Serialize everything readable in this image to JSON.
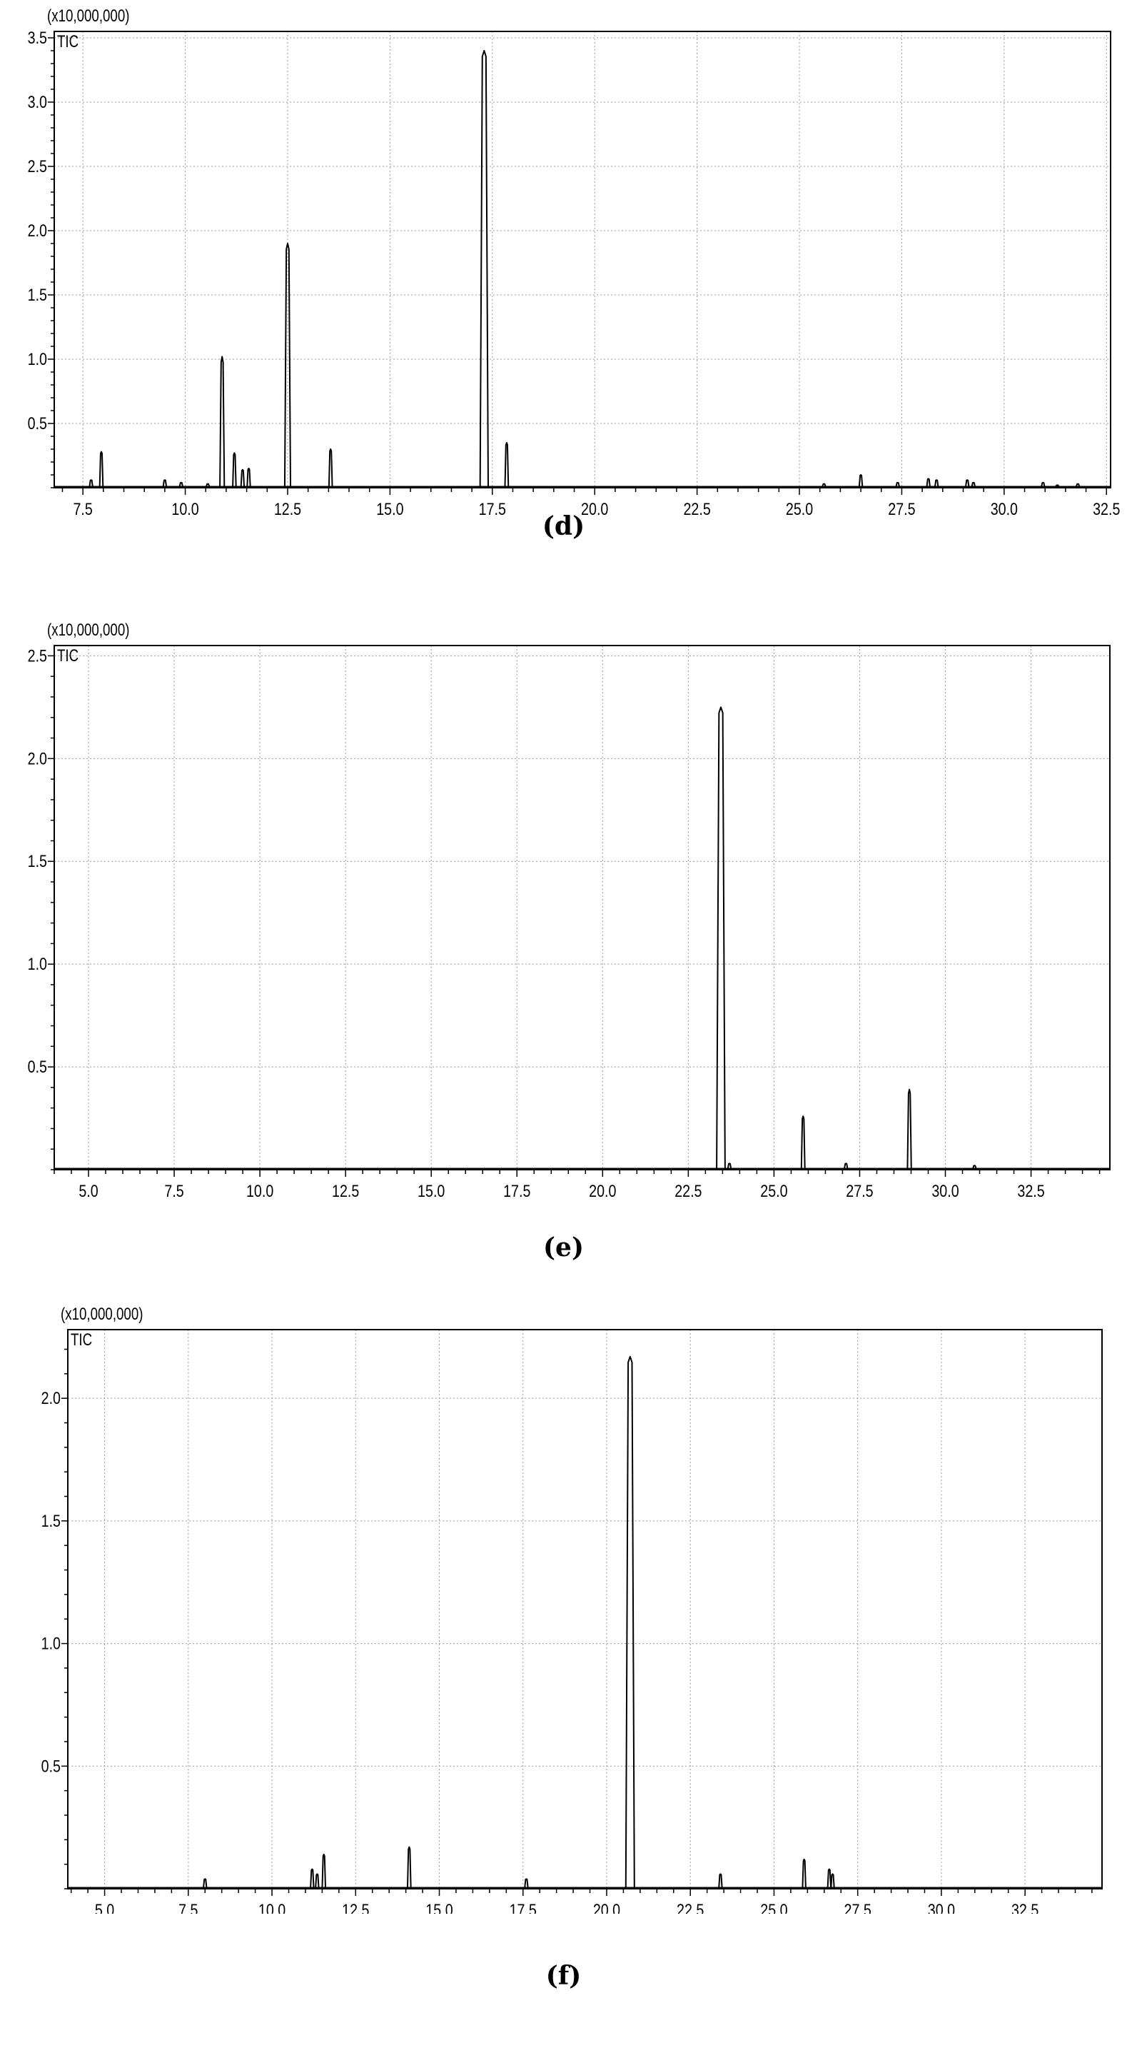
{
  "chart_data": [
    {
      "type": "line",
      "panel_label": "(d)",
      "scale_label": "(x10,000,000)",
      "series_label": "TIC",
      "xlim": [
        6.8,
        32.6
      ],
      "ylim": [
        0,
        3.55
      ],
      "x_ticks": [
        7.5,
        10.0,
        12.5,
        15.0,
        17.5,
        20.0,
        22.5,
        25.0,
        27.5,
        30.0,
        32.5
      ],
      "x_tick_labels": [
        "7.5",
        "10.0",
        "12.5",
        "15.0",
        "17.5",
        "20.0",
        "22.5",
        "25.0",
        "27.5",
        "30.0",
        "32.5"
      ],
      "y_ticks": [
        0.5,
        1.0,
        1.5,
        2.0,
        2.5,
        3.0,
        3.5
      ],
      "y_tick_labels": [
        "0.5",
        "1.0",
        "1.5",
        "2.0",
        "2.5",
        "3.0",
        "3.5"
      ],
      "grid": true,
      "peaks": [
        {
          "x": 7.7,
          "y": 0.06
        },
        {
          "x": 7.95,
          "y": 0.28
        },
        {
          "x": 9.5,
          "y": 0.06
        },
        {
          "x": 9.9,
          "y": 0.04
        },
        {
          "x": 10.55,
          "y": 0.03
        },
        {
          "x": 10.9,
          "y": 1.02
        },
        {
          "x": 11.2,
          "y": 0.27
        },
        {
          "x": 11.4,
          "y": 0.14
        },
        {
          "x": 11.55,
          "y": 0.15
        },
        {
          "x": 12.5,
          "y": 1.9
        },
        {
          "x": 13.55,
          "y": 0.3
        },
        {
          "x": 17.3,
          "y": 3.4
        },
        {
          "x": 17.85,
          "y": 0.35
        },
        {
          "x": 25.6,
          "y": 0.03
        },
        {
          "x": 26.5,
          "y": 0.1
        },
        {
          "x": 27.4,
          "y": 0.04
        },
        {
          "x": 28.15,
          "y": 0.07
        },
        {
          "x": 28.35,
          "y": 0.06
        },
        {
          "x": 29.1,
          "y": 0.06
        },
        {
          "x": 29.25,
          "y": 0.04
        },
        {
          "x": 30.95,
          "y": 0.04
        },
        {
          "x": 31.3,
          "y": 0.02
        },
        {
          "x": 31.8,
          "y": 0.03
        }
      ]
    },
    {
      "type": "line",
      "panel_label": "(e)",
      "scale_label": "(x10,000,000)",
      "series_label": "TIC",
      "xlim": [
        4.0,
        34.8
      ],
      "ylim": [
        0,
        2.55
      ],
      "x_ticks": [
        5.0,
        7.5,
        10.0,
        12.5,
        15.0,
        17.5,
        20.0,
        22.5,
        25.0,
        27.5,
        30.0,
        32.5
      ],
      "x_tick_labels": [
        "5.0",
        "7.5",
        "10.0",
        "12.5",
        "15.0",
        "17.5",
        "20.0",
        "22.5",
        "25.0",
        "27.5",
        "30.0",
        "32.5"
      ],
      "y_ticks": [
        0.5,
        1.0,
        1.5,
        2.0,
        2.5
      ],
      "y_tick_labels": [
        "0.5",
        "1.0",
        "1.5",
        "2.0",
        "2.5"
      ],
      "grid": true,
      "peaks": [
        {
          "x": 23.45,
          "y": 2.25
        },
        {
          "x": 23.7,
          "y": 0.03
        },
        {
          "x": 25.85,
          "y": 0.26
        },
        {
          "x": 27.1,
          "y": 0.03
        },
        {
          "x": 28.95,
          "y": 0.39
        },
        {
          "x": 30.85,
          "y": 0.02
        }
      ]
    },
    {
      "type": "line",
      "panel_label": "(f)",
      "scale_label": "(x10,000,000)",
      "series_label": "TIC",
      "xlim": [
        3.9,
        34.8
      ],
      "ylim": [
        0,
        2.28
      ],
      "x_ticks": [
        5.0,
        7.5,
        10.0,
        12.5,
        15.0,
        17.5,
        20.0,
        22.5,
        25.0,
        27.5,
        30.0,
        32.5
      ],
      "x_tick_labels": [
        "5.0",
        "7.5",
        "10.0",
        "12.5",
        "15.0",
        "17.5",
        "20.0",
        "22.5",
        "25.0",
        "27.5",
        "30.0",
        "32.5"
      ],
      "y_ticks": [
        0.5,
        1.0,
        1.5,
        2.0
      ],
      "y_tick_labels": [
        "0.5",
        "1.0",
        "1.5",
        "2.0"
      ],
      "grid": true,
      "peaks": [
        {
          "x": 8.0,
          "y": 0.04
        },
        {
          "x": 11.2,
          "y": 0.08
        },
        {
          "x": 11.35,
          "y": 0.06
        },
        {
          "x": 11.55,
          "y": 0.14
        },
        {
          "x": 14.1,
          "y": 0.17
        },
        {
          "x": 17.6,
          "y": 0.04
        },
        {
          "x": 20.7,
          "y": 2.17
        },
        {
          "x": 23.4,
          "y": 0.06
        },
        {
          "x": 25.9,
          "y": 0.12
        },
        {
          "x": 26.65,
          "y": 0.08
        },
        {
          "x": 26.75,
          "y": 0.06
        }
      ]
    }
  ]
}
